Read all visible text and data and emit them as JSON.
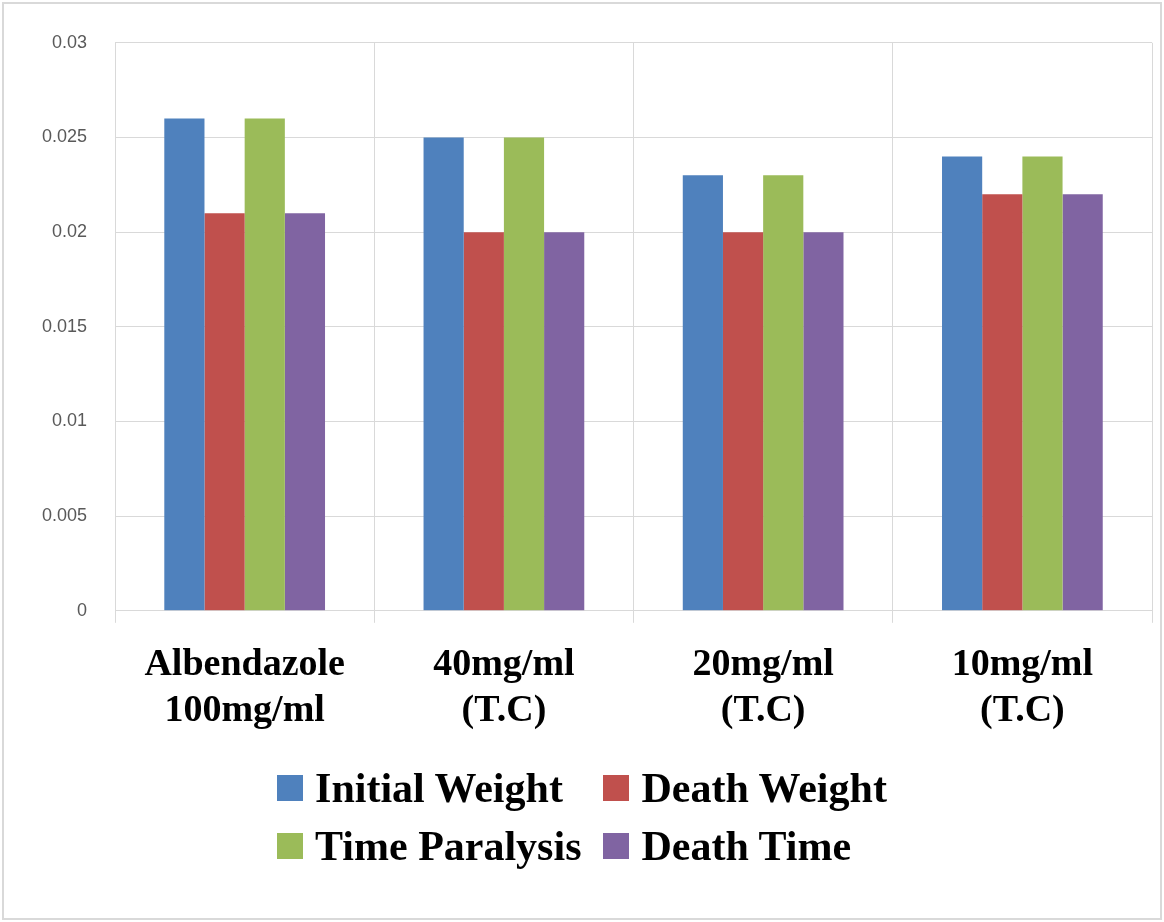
{
  "chart_data": {
    "type": "bar",
    "categories": [
      "Albendazole 100mg/ml",
      "40mg/ml (T.C)",
      "20mg/ml (T.C)",
      "10mg/ml (T.C)"
    ],
    "series": [
      {
        "name": "Initial Weight",
        "color": "#4f81bd",
        "values": [
          0.026,
          0.025,
          0.023,
          0.024
        ]
      },
      {
        "name": "Death Weight",
        "color": "#c0504d",
        "values": [
          0.021,
          0.02,
          0.02,
          0.022
        ]
      },
      {
        "name": "Time Paralysis",
        "color": "#9bbb59",
        "values": [
          0.026,
          0.025,
          0.023,
          0.024
        ]
      },
      {
        "name": "Death Time",
        "color": "#8064a2",
        "values": [
          0.021,
          0.02,
          0.02,
          0.022
        ]
      }
    ],
    "ylim": [
      0,
      0.03
    ],
    "yticks": [
      0,
      0.005,
      0.01,
      0.015,
      0.02,
      0.025,
      0.03
    ],
    "grid": true,
    "legend": "bottom"
  }
}
